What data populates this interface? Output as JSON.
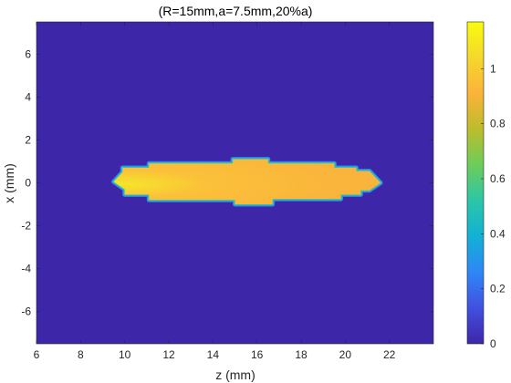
{
  "chart_data": {
    "type": "heatmap",
    "title": "(R=15mm,a=7.5mm,20%a)",
    "xlabel": "z (mm)",
    "ylabel": "x (mm)",
    "xlim": [
      6,
      24
    ],
    "ylim": [
      -7.5,
      7.5
    ],
    "x_ticks": [
      "6",
      "8",
      "10",
      "12",
      "14",
      "16",
      "18",
      "20",
      "22"
    ],
    "y_ticks": [
      "6",
      "4",
      "2",
      "0",
      "-2",
      "-4",
      "-6"
    ],
    "x_tick_values": [
      6,
      8,
      10,
      12,
      14,
      16,
      18,
      20,
      22
    ],
    "y_tick_values": [
      6,
      4,
      2,
      0,
      -2,
      -4,
      -6
    ],
    "background_value": 0,
    "region_value_approx": 1.0,
    "region_peak_value": 1.15,
    "region_boundary": [
      [
        9.5,
        0.05
      ],
      [
        9.9,
        0.5
      ],
      [
        9.9,
        0.7
      ],
      [
        11.1,
        0.7
      ],
      [
        11.1,
        0.9
      ],
      [
        14.9,
        0.9
      ],
      [
        14.9,
        1.1
      ],
      [
        16.5,
        1.1
      ],
      [
        16.5,
        0.9
      ],
      [
        19.5,
        0.9
      ],
      [
        19.5,
        0.7
      ],
      [
        20.5,
        0.7
      ],
      [
        20.5,
        0.55
      ],
      [
        21.1,
        0.55
      ],
      [
        21.6,
        0.0
      ],
      [
        21.1,
        -0.35
      ],
      [
        20.7,
        -0.35
      ],
      [
        20.7,
        -0.55
      ],
      [
        19.8,
        -0.55
      ],
      [
        19.8,
        -0.75
      ],
      [
        16.7,
        -0.75
      ],
      [
        16.7,
        -1.0
      ],
      [
        15.0,
        -1.0
      ],
      [
        15.0,
        -0.8
      ],
      [
        11.1,
        -0.8
      ],
      [
        11.1,
        -0.55
      ],
      [
        10.0,
        -0.55
      ],
      [
        10.0,
        -0.3
      ]
    ],
    "colorbar": {
      "ticks": [
        "0",
        "0.2",
        "0.4",
        "0.6",
        "0.8",
        "1"
      ],
      "tick_values": [
        0,
        0.2,
        0.4,
        0.6,
        0.8,
        1.0
      ],
      "range": [
        0,
        1.17
      ],
      "colormap": "parula",
      "stops": [
        "#3e26a8",
        "#4150e0",
        "#2e87f7",
        "#12b1d4",
        "#2bc6a8",
        "#6ccd5a",
        "#bcbd2a",
        "#fbb33a",
        "#f5d82b",
        "#f9fb0e"
      ]
    },
    "grid": false
  }
}
